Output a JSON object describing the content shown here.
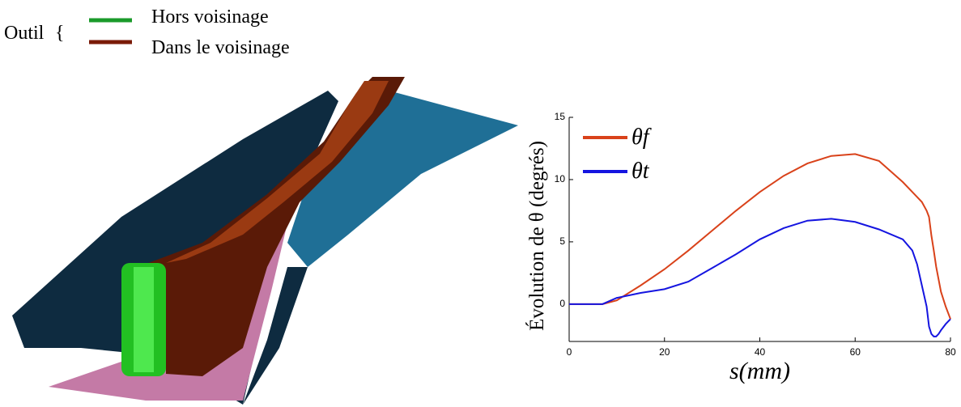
{
  "illustration": {
    "legend_title": "Outil",
    "items": [
      {
        "label": "Hors voisinage",
        "color": "#1a9a2a"
      },
      {
        "label": "Dans le voisinage",
        "color": "#7a1a08"
      }
    ]
  },
  "chart_data": {
    "type": "line",
    "xlabel": "s(mm)",
    "ylabel": "Évolution de θ (degrés)",
    "x": [
      0,
      5,
      7,
      10,
      15,
      20,
      25,
      30,
      35,
      40,
      45,
      50,
      55,
      60,
      65,
      70,
      72,
      73,
      74,
      75,
      75.5,
      76,
      76.5,
      77,
      77.5,
      78,
      79,
      80
    ],
    "series": [
      {
        "name": "θf",
        "color": "#d9421a",
        "values": [
          0,
          0,
          0,
          0.3,
          1.5,
          2.8,
          4.3,
          5.9,
          7.5,
          9.0,
          10.3,
          11.3,
          11.9,
          12.05,
          11.5,
          9.8,
          9.0,
          8.6,
          8.2,
          7.5,
          7.0,
          5.5,
          4.3,
          3.0,
          2.0,
          1.0,
          -0.2,
          -1.2
        ]
      },
      {
        "name": "θt",
        "color": "#1515e0",
        "values": [
          0,
          0,
          0,
          0.5,
          0.9,
          1.2,
          1.8,
          2.9,
          4.0,
          5.2,
          6.1,
          6.7,
          6.85,
          6.6,
          6.0,
          5.2,
          4.3,
          3.2,
          1.5,
          -0.2,
          -1.8,
          -2.4,
          -2.6,
          -2.6,
          -2.4,
          -2.1,
          -1.6,
          -1.2
        ]
      }
    ],
    "xlim": [
      0,
      80
    ],
    "ylim": [
      -3,
      15
    ],
    "xticks": [
      0,
      20,
      40,
      60,
      80
    ],
    "yticks": [
      0,
      5,
      10,
      15
    ],
    "legend": "upper left"
  }
}
